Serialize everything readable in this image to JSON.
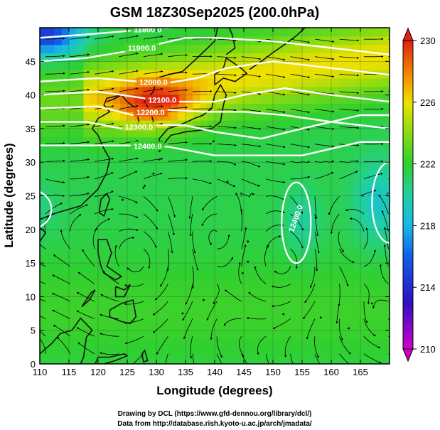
{
  "chart_data": {
    "type": "heatmap",
    "title": "GSM 18Z30Sep2025 (200.0hPa)",
    "xlabel": "Longitude (degrees)",
    "ylabel": "Latitude (degrees)",
    "xlim": [
      110,
      170
    ],
    "ylim": [
      0,
      50
    ],
    "x_ticks": [
      "110",
      "115",
      "120",
      "125",
      "130",
      "135",
      "140",
      "145",
      "150",
      "155",
      "160",
      "165"
    ],
    "y_ticks": [
      "0",
      "5",
      "10",
      "15",
      "20",
      "25",
      "30",
      "35",
      "40",
      "45"
    ],
    "colorbar": {
      "min": 210,
      "max": 230,
      "ticks": [
        "230",
        "226",
        "222",
        "218",
        "214",
        "210"
      ],
      "stops": [
        {
          "value": 210,
          "color": "#d000c8"
        },
        {
          "value": 213,
          "color": "#3010c0"
        },
        {
          "value": 216,
          "color": "#1060e8"
        },
        {
          "value": 218,
          "color": "#18b8e8"
        },
        {
          "value": 220,
          "color": "#20d0a0"
        },
        {
          "value": 222,
          "color": "#30d030"
        },
        {
          "value": 224,
          "color": "#88dc10"
        },
        {
          "value": 226,
          "color": "#f0e000"
        },
        {
          "value": 228,
          "color": "#f08000"
        },
        {
          "value": 230,
          "color": "#e02010"
        }
      ]
    },
    "contours": [
      {
        "label": "11800.0",
        "lon": [
          110,
          118,
          125,
          132,
          140,
          150,
          160,
          170
        ],
        "lat": [
          48.5,
          49,
          49.5,
          50,
          50.5,
          51,
          51,
          51
        ]
      },
      {
        "label": "11900.0",
        "lon": [
          110,
          118,
          125,
          130,
          135,
          140,
          150,
          160,
          170
        ],
        "lat": [
          45,
          45.5,
          46.5,
          47.5,
          48.5,
          48.5,
          48,
          47,
          46
        ]
      },
      {
        "label": "12000.0",
        "lon": [
          110,
          120,
          127,
          132,
          137,
          142,
          150,
          160,
          170
        ],
        "lat": [
          42,
          42.5,
          42,
          41.8,
          42.5,
          44,
          45,
          44,
          43
        ]
      },
      {
        "label": "12100.0",
        "lon": [
          110,
          120,
          128,
          134,
          140,
          145,
          152,
          160,
          170
        ],
        "lat": [
          40,
          40.5,
          39.5,
          39,
          39,
          40,
          41,
          40,
          39
        ]
      },
      {
        "label": "12200.0",
        "lon": [
          110,
          120,
          126,
          132,
          138,
          145,
          152,
          160,
          170
        ],
        "lat": [
          38,
          38.3,
          37,
          37.8,
          37.5,
          37.5,
          37,
          36,
          35
        ]
      },
      {
        "label": "12300.0",
        "lon": [
          110,
          118,
          124,
          130,
          135,
          140,
          148,
          155,
          160,
          165,
          170
        ],
        "lat": [
          36,
          36,
          35,
          35.5,
          35.5,
          34.5,
          33.5,
          35,
          36,
          37,
          37
        ]
      },
      {
        "label": "12400.0",
        "lon": [
          110,
          118,
          125,
          132,
          140,
          148,
          155,
          165,
          170
        ],
        "lat": [
          32.5,
          32.5,
          32.5,
          32.3,
          31,
          31,
          31,
          33,
          33
        ]
      },
      {
        "label": "12400.0",
        "closed": true,
        "center": [
          154,
          21
        ],
        "radius": [
          2.5,
          6
        ]
      },
      {
        "label": "",
        "closed": true,
        "center": [
          170,
          24
        ],
        "radius": [
          3,
          6
        ]
      },
      {
        "label": "",
        "closed": true,
        "center": [
          108,
          23
        ],
        "radius": [
          4,
          3
        ]
      }
    ],
    "warm_anomaly_center": {
      "lon": 130,
      "lat": 38.5,
      "value": 229
    },
    "cold_anomaly_center": {
      "lon": 111,
      "lat": 49,
      "value": 216
    }
  },
  "credits": {
    "line1": "Drawing by DCL (https://www.gfd-dennou.org/library/dcl/)",
    "line2": "Data from http://database.rish.kyoto-u.ac.jp/arch/jmadata/"
  }
}
